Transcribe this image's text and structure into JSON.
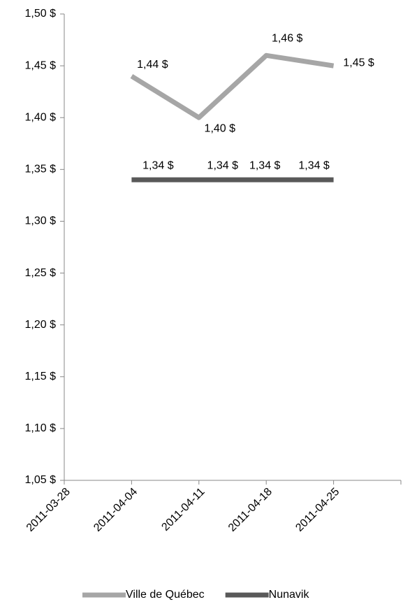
{
  "chart_data": {
    "type": "line",
    "categories": [
      "2011-03-28",
      "2011-04-04",
      "2011-04-11",
      "2011-04-18",
      "2011-04-25"
    ],
    "series": [
      {
        "name": "Ville de Québec",
        "color": "#a6a6a6",
        "values": [
          null,
          1.44,
          1.4,
          1.46,
          1.45
        ],
        "value_labels": [
          null,
          "1,44 $",
          "1,40 $",
          "1,46 $",
          "1,45 $"
        ]
      },
      {
        "name": "Nunavik",
        "color": "#595959",
        "values": [
          null,
          1.34,
          1.34,
          1.34,
          1.34
        ],
        "value_labels": [
          null,
          "1,34 $",
          "1,34 $",
          "1,34 $",
          "1,34 $"
        ]
      }
    ],
    "ylim": [
      1.05,
      1.5
    ],
    "yticks": [
      {
        "value": 1.05,
        "label": "1,05 $"
      },
      {
        "value": 1.1,
        "label": "1,10 $"
      },
      {
        "value": 1.15,
        "label": "1,15 $"
      },
      {
        "value": 1.2,
        "label": "1,20 $"
      },
      {
        "value": 1.25,
        "label": "1,25 $"
      },
      {
        "value": 1.3,
        "label": "1,30 $"
      },
      {
        "value": 1.35,
        "label": "1,35 $"
      },
      {
        "value": 1.4,
        "label": "1,40 $"
      },
      {
        "value": 1.45,
        "label": "1,45 $"
      },
      {
        "value": 1.5,
        "label": "1,50 $"
      }
    ],
    "grid": false,
    "legend": "bottom"
  }
}
